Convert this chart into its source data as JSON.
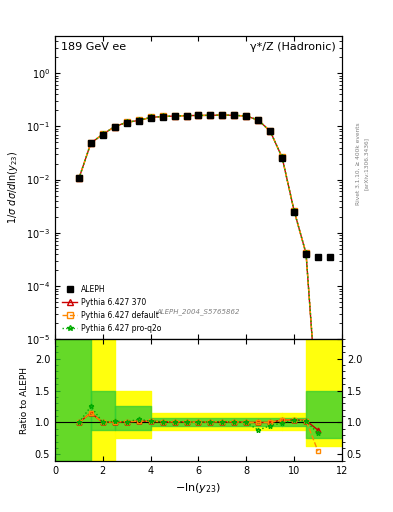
{
  "title_left": "189 GeV ee",
  "title_right": "γ*/Z (Hadronic)",
  "ylabel_main": "1/σ dσ/dln(y_{23})",
  "ylabel_ratio": "Ratio to ALEPH",
  "xlabel": "-ln(y_{23})",
  "watermark": "ALEPH_2004_S5765862",
  "right_label": "Rivet 3.1.10, ≥ 400k events",
  "arxiv_label": "[arXiv:1306.3436]",
  "x_data": [
    1.0,
    1.5,
    2.0,
    2.5,
    3.0,
    3.5,
    4.0,
    4.5,
    5.0,
    5.5,
    6.0,
    6.5,
    7.0,
    7.5,
    8.0,
    8.5,
    9.0,
    9.5,
    10.0,
    10.5,
    11.0,
    11.5
  ],
  "aleph_y": [
    0.0105,
    0.048,
    0.07,
    0.098,
    0.118,
    0.128,
    0.145,
    0.152,
    0.155,
    0.158,
    0.16,
    0.16,
    0.162,
    0.16,
    0.155,
    0.13,
    0.08,
    0.025,
    0.0025,
    0.0004,
    0.00035,
    0.00035
  ],
  "pythia370_y": [
    0.0105,
    0.0485,
    0.071,
    0.099,
    0.119,
    0.129,
    0.147,
    0.153,
    0.156,
    0.159,
    0.16,
    0.161,
    0.163,
    0.161,
    0.156,
    0.131,
    0.081,
    0.026,
    0.0026,
    0.00041,
    3e-07,
    null
  ],
  "pythia_default_y": [
    0.0105,
    0.0485,
    0.071,
    0.099,
    0.119,
    0.129,
    0.147,
    0.153,
    0.156,
    0.159,
    0.16,
    0.161,
    0.163,
    0.161,
    0.156,
    0.131,
    0.081,
    0.026,
    0.0026,
    0.00041,
    3.5e-07,
    null
  ],
  "pythia_proq2o_y": [
    0.0105,
    0.0485,
    0.071,
    0.099,
    0.119,
    0.129,
    0.147,
    0.153,
    0.156,
    0.159,
    0.16,
    0.161,
    0.163,
    0.161,
    0.156,
    0.131,
    0.081,
    0.026,
    0.0026,
    0.00041,
    3.5e-07,
    null
  ],
  "ratio370_y": [
    1.0,
    1.15,
    1.0,
    1.01,
    1.01,
    1.02,
    1.02,
    1.01,
    1.01,
    1.01,
    1.0,
    1.01,
    1.01,
    1.01,
    1.0,
    1.0,
    1.0,
    1.04,
    1.04,
    1.03,
    0.88,
    null
  ],
  "ratio_default_y": [
    1.0,
    1.15,
    1.0,
    1.01,
    1.01,
    1.02,
    1.02,
    1.01,
    1.01,
    1.01,
    1.0,
    1.01,
    1.01,
    1.01,
    1.0,
    1.0,
    1.0,
    1.04,
    1.04,
    1.03,
    0.55,
    null
  ],
  "ratio_proq2o_y": [
    1.0,
    1.25,
    1.0,
    1.02,
    1.01,
    1.05,
    1.02,
    1.01,
    1.01,
    1.01,
    1.0,
    1.01,
    1.01,
    1.01,
    1.0,
    0.88,
    0.95,
    0.99,
    1.04,
    1.02,
    0.83,
    null
  ],
  "color_aleph": "#000000",
  "color_370": "#cc0000",
  "color_default": "#ff8800",
  "color_proq2o": "#00aa00",
  "xlim": [
    0,
    12
  ],
  "ylim_main": [
    1e-05,
    5.0
  ],
  "ylim_ratio": [
    0.4,
    2.3
  ],
  "band_x_edges": [
    0.0,
    1.5,
    2.5,
    4.0,
    9.5,
    10.5,
    12.0
  ],
  "band_yellow_lo": [
    0.4,
    0.4,
    0.75,
    0.875,
    0.875,
    0.625,
    0.625
  ],
  "band_yellow_hi": [
    2.3,
    2.3,
    1.5,
    1.15,
    1.15,
    2.3,
    2.3
  ],
  "band_green_lo": [
    0.4,
    0.875,
    0.875,
    0.9375,
    0.9375,
    0.75,
    0.625
  ],
  "band_green_hi": [
    2.3,
    1.5,
    1.25,
    1.075,
    1.075,
    1.5,
    2.3
  ]
}
